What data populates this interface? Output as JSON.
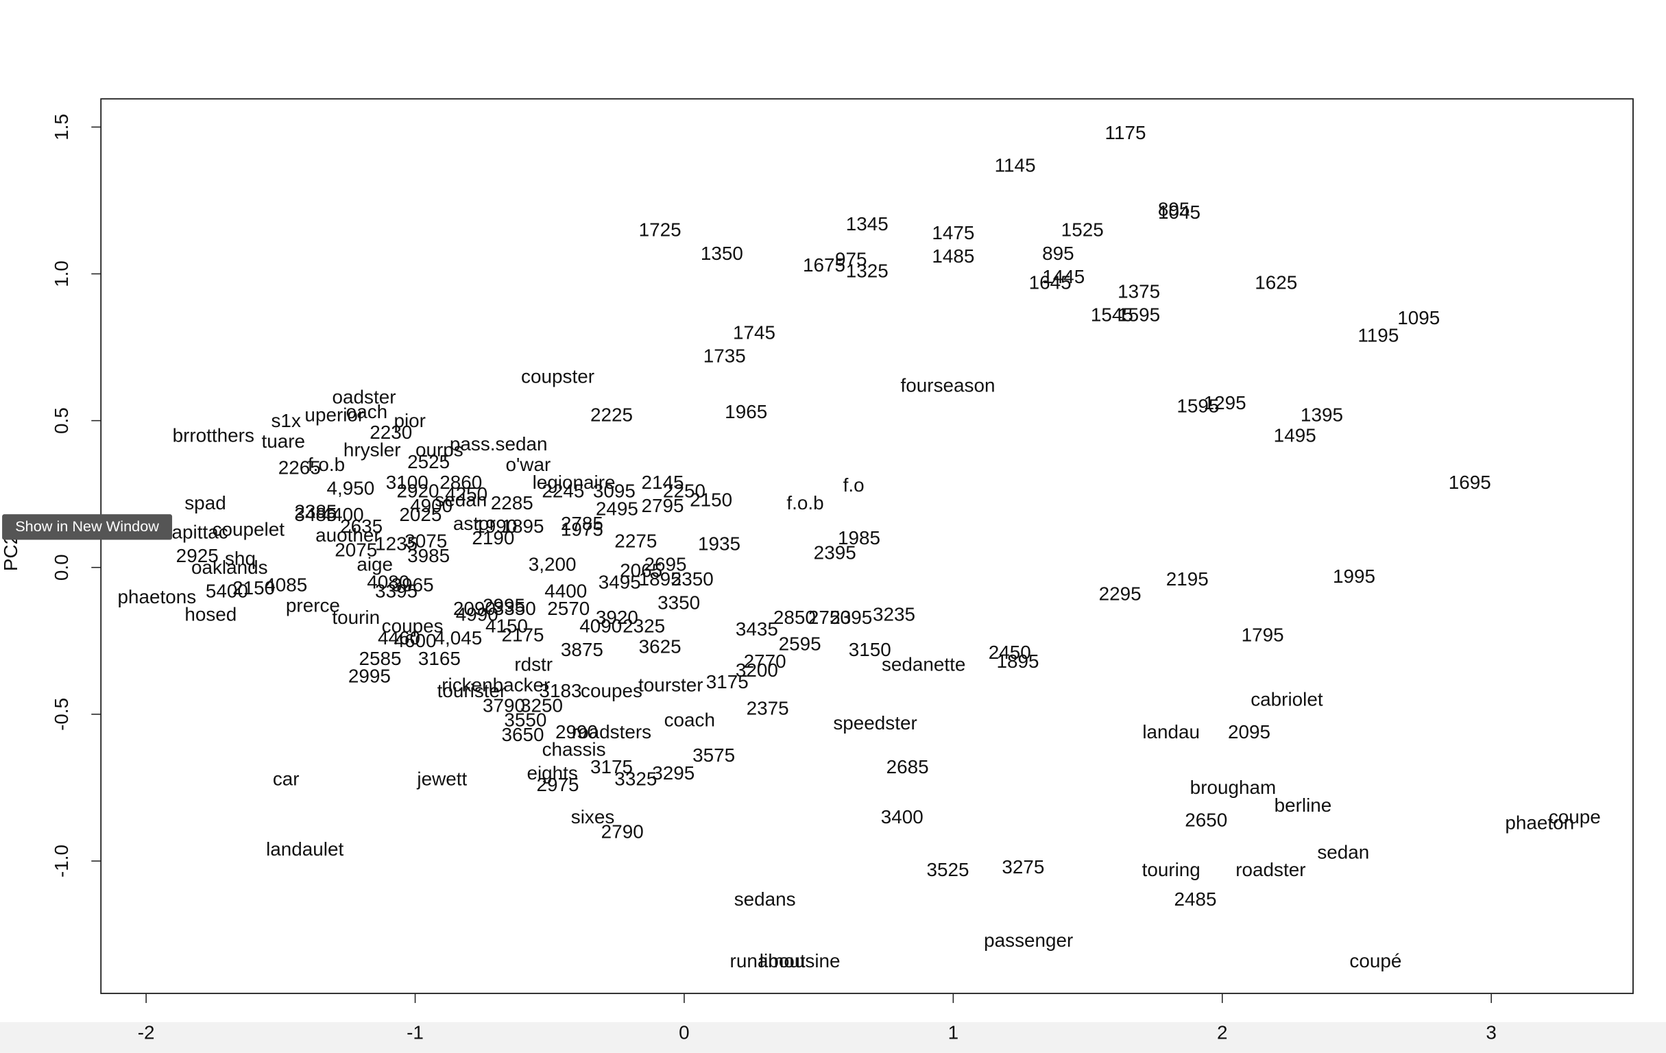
{
  "chart_data": {
    "type": "scatter",
    "ylabel": "PC2",
    "xlim": [
      -2.168,
      3.527
    ],
    "ylim": [
      -1.451,
      1.596
    ],
    "xticks": [
      -2,
      -1,
      0,
      1,
      2,
      3
    ],
    "yticks": [
      {
        "value": -1,
        "label": "-1.0"
      },
      -0.5,
      {
        "value": 0,
        "label": "0.0"
      },
      0.5,
      {
        "value": 1,
        "label": "1.0"
      },
      1.5
    ],
    "color": "#111111",
    "labels": [
      "1175",
      "1145",
      "895",
      "1045",
      "1725",
      "1345",
      "1475",
      "1525",
      "1350",
      "1485",
      "895",
      "1675",
      "975",
      "1325",
      "1445",
      "1645",
      "1625",
      "1375",
      "1545",
      "1595",
      "1095",
      "1195",
      "1745",
      "1735",
      "coupster",
      "fourseason",
      "oadster",
      "1965",
      "2225",
      "1595",
      "1295",
      "1395",
      "1495",
      "s1x",
      "uperior",
      "oach",
      "pior",
      "brrotthers",
      "tuare",
      "2230",
      "hrysler",
      "ourps",
      "pass.sedan",
      "2525",
      "o'war",
      "2265",
      "f.o.b",
      "4,950",
      "3100",
      "2860",
      "legionaire",
      "2145",
      "f.o",
      "1695",
      "2920",
      "4250",
      "2245",
      "3095",
      "2250",
      "2150",
      "f.o.b",
      "spad",
      "2385",
      "3485",
      "4400",
      "4900",
      "sedan",
      "2285",
      "2495",
      "2795",
      "2025",
      "2635",
      "astor",
      "1990",
      "1895",
      "2785",
      "1975",
      "apittac",
      "coupelet",
      "auother",
      "2190",
      "1935",
      "2275",
      "1985",
      "2395",
      "2075",
      "1235",
      "3075",
      "3985",
      "2925",
      "shq",
      "3,200",
      "2695",
      "oaklands",
      "aige",
      "2065",
      "3495",
      "1895",
      "2350",
      "4080",
      "3965",
      "3395",
      "5400",
      "2150",
      "4085",
      "4400",
      "1995",
      "2195",
      "phaetons",
      "2295",
      "3350",
      "hosed",
      "prerce",
      "tourin",
      "2090",
      "2995",
      "4990",
      "3350",
      "2570",
      "3920",
      "4090",
      "2325",
      "2850",
      "2750",
      "2395",
      "3235",
      "3435",
      "coupes",
      "4150",
      "4460",
      "4600",
      "4,045",
      "2175",
      "2595",
      "3150",
      "3875",
      "3625",
      "2450",
      "1895",
      "sedanette",
      "1795",
      "2585",
      "3165",
      "rdstr",
      "2770",
      "3200",
      "2995",
      "rickenbacker",
      "tourister",
      "3183",
      "coupes",
      "tourster",
      "3175",
      "cabriolet",
      "3790",
      "3250",
      "2375",
      "3550",
      "coach",
      "speedster",
      "3650",
      "2990",
      "roadsters",
      "landau",
      "2095",
      "chassis",
      "3575",
      "2685",
      "eights",
      "3175",
      "3295",
      "3325",
      "2975",
      "car",
      "jewett",
      "brougham",
      "berline",
      "sixes",
      "3400",
      "2650",
      "phaeton",
      "coupe",
      "2790",
      "landaulet",
      "sedan",
      "3525",
      "3275",
      "touring",
      "roadster",
      "2485",
      "sedans",
      "passenger",
      "runabout",
      "limousine",
      "coupé"
    ],
    "x": [
      1.64,
      1.23,
      1.82,
      1.84,
      -0.09,
      0.68,
      1.0,
      1.48,
      0.14,
      1.0,
      1.39,
      0.52,
      0.62,
      0.68,
      1.41,
      1.36,
      2.2,
      1.69,
      1.59,
      1.69,
      2.73,
      2.58,
      0.26,
      0.15,
      -0.47,
      0.98,
      -1.19,
      0.23,
      -0.27,
      1.91,
      2.01,
      2.37,
      2.27,
      -1.48,
      -1.3,
      -1.18,
      -1.02,
      -1.75,
      -1.49,
      -1.09,
      -1.16,
      -0.91,
      -0.69,
      -0.95,
      -0.58,
      -1.43,
      -1.33,
      -1.24,
      -1.03,
      -0.83,
      -0.41,
      -0.08,
      0.63,
      2.92,
      -0.99,
      -0.81,
      -0.45,
      -0.26,
      0.0,
      0.1,
      0.45,
      -1.78,
      -1.37,
      -1.37,
      -1.27,
      -0.94,
      -0.83,
      -0.64,
      -0.25,
      -0.08,
      -0.98,
      -1.2,
      -0.78,
      -0.7,
      -0.6,
      -0.38,
      -0.38,
      -1.8,
      -1.62,
      -1.25,
      -0.71,
      0.13,
      -0.18,
      0.65,
      0.56,
      -1.22,
      -1.07,
      -0.96,
      -0.95,
      -1.81,
      -1.65,
      -0.49,
      -0.07,
      -1.69,
      -1.15,
      -0.16,
      -0.24,
      -0.09,
      0.03,
      -1.1,
      -1.01,
      -1.07,
      -1.7,
      -1.6,
      -1.48,
      -0.44,
      2.49,
      1.87,
      -1.96,
      1.62,
      -0.02,
      -1.76,
      -1.38,
      -1.22,
      -0.78,
      -0.67,
      -0.77,
      -0.63,
      -0.43,
      -0.25,
      -0.31,
      -0.15,
      0.41,
      0.54,
      0.62,
      0.78,
      0.27,
      -1.01,
      -0.66,
      -1.06,
      -1.0,
      -0.84,
      -0.6,
      0.43,
      0.69,
      -0.38,
      -0.09,
      1.21,
      1.24,
      0.89,
      2.15,
      -1.13,
      -0.91,
      -0.56,
      0.3,
      0.27,
      -1.17,
      -0.7,
      -0.79,
      -0.46,
      -0.27,
      -0.05,
      0.16,
      2.24,
      -0.67,
      -0.53,
      0.31,
      -0.59,
      0.02,
      0.71,
      -0.6,
      -0.4,
      -0.27,
      1.81,
      2.1,
      -0.41,
      0.11,
      0.83,
      -0.49,
      -0.27,
      -0.04,
      -0.18,
      -0.47,
      -1.48,
      -0.9,
      2.04,
      2.3,
      -0.34,
      0.81,
      1.94,
      3.18,
      3.31,
      -0.23,
      -1.41,
      2.45,
      0.98,
      1.26,
      1.81,
      2.18,
      1.9,
      0.3,
      1.28,
      0.31,
      0.43,
      2.57
    ],
    "values": [
      1.48,
      1.37,
      1.22,
      1.21,
      1.15,
      1.17,
      1.14,
      1.15,
      1.07,
      1.06,
      1.07,
      1.03,
      1.05,
      1.01,
      0.99,
      0.97,
      0.97,
      0.94,
      0.86,
      0.86,
      0.85,
      0.79,
      0.8,
      0.72,
      0.65,
      0.62,
      0.58,
      0.53,
      0.52,
      0.55,
      0.56,
      0.52,
      0.45,
      0.5,
      0.52,
      0.53,
      0.5,
      0.45,
      0.43,
      0.46,
      0.4,
      0.4,
      0.42,
      0.36,
      0.35,
      0.34,
      0.35,
      0.27,
      0.29,
      0.29,
      0.29,
      0.29,
      0.28,
      0.29,
      0.26,
      0.25,
      0.26,
      0.26,
      0.26,
      0.23,
      0.22,
      0.22,
      0.19,
      0.18,
      0.18,
      0.21,
      0.23,
      0.22,
      0.2,
      0.21,
      0.18,
      0.14,
      0.15,
      0.14,
      0.14,
      0.15,
      0.13,
      0.12,
      0.13,
      0.11,
      0.1,
      0.08,
      0.09,
      0.1,
      0.05,
      0.06,
      0.08,
      0.09,
      0.04,
      0.04,
      0.03,
      0.01,
      0.01,
      0.0,
      0.01,
      -0.01,
      -0.05,
      -0.04,
      -0.04,
      -0.05,
      -0.06,
      -0.08,
      -0.08,
      -0.07,
      -0.06,
      -0.08,
      -0.03,
      -0.04,
      -0.1,
      -0.09,
      -0.12,
      -0.16,
      -0.13,
      -0.17,
      -0.14,
      -0.13,
      -0.16,
      -0.14,
      -0.14,
      -0.17,
      -0.2,
      -0.2,
      -0.17,
      -0.17,
      -0.17,
      -0.16,
      -0.21,
      -0.2,
      -0.2,
      -0.24,
      -0.25,
      -0.24,
      -0.23,
      -0.26,
      -0.28,
      -0.28,
      -0.27,
      -0.29,
      -0.32,
      -0.33,
      -0.23,
      -0.31,
      -0.31,
      -0.33,
      -0.32,
      -0.35,
      -0.37,
      -0.4,
      -0.42,
      -0.42,
      -0.42,
      -0.4,
      -0.39,
      -0.45,
      -0.47,
      -0.47,
      -0.48,
      -0.52,
      -0.52,
      -0.53,
      -0.57,
      -0.56,
      -0.56,
      -0.56,
      -0.56,
      -0.62,
      -0.64,
      -0.68,
      -0.7,
      -0.68,
      -0.7,
      -0.72,
      -0.74,
      -0.72,
      -0.72,
      -0.75,
      -0.81,
      -0.85,
      -0.85,
      -0.86,
      -0.87,
      -0.85,
      -0.9,
      -0.96,
      -0.97,
      -1.03,
      -1.02,
      -1.03,
      -1.03,
      -1.13,
      -1.13,
      -1.27,
      -1.34,
      -1.34,
      -1.34
    ]
  },
  "ui": {
    "tooltip": "Show in New Window"
  }
}
